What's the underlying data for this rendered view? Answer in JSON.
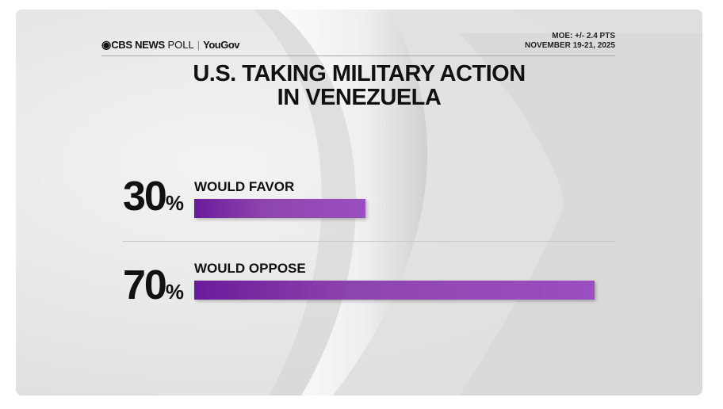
{
  "header": {
    "brand_cbs": "CBS NEWS",
    "brand_poll": "POLL",
    "brand_separator": "|",
    "brand_partner": "YouGov",
    "moe": "MOE: +/- 2.4 PTS",
    "dates": "NOVEMBER 19-21, 2025"
  },
  "chart_data": {
    "type": "bar",
    "title_line1": "U.S. TAKING MILITARY ACTION",
    "title_line2": "IN VENEZUELA",
    "categories": [
      "WOULD FAVOR",
      "WOULD OPPOSE"
    ],
    "values": [
      30,
      70
    ],
    "value_labels": [
      "30",
      "70"
    ],
    "unit": "%",
    "xlim": [
      0,
      70
    ],
    "orientation": "horizontal",
    "bar_color": "#8e44ad"
  }
}
